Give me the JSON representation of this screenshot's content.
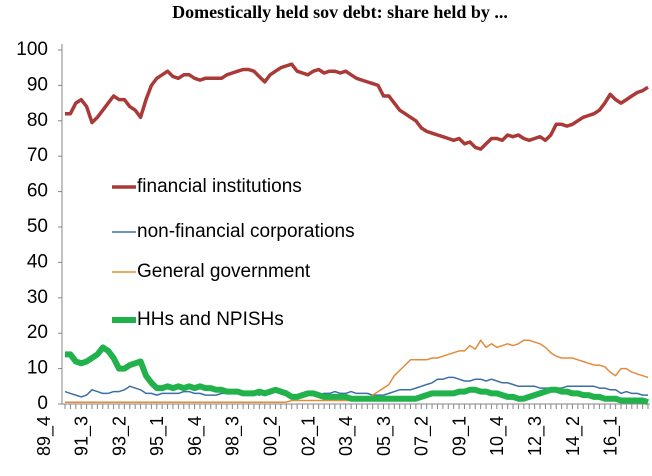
{
  "chart_data": {
    "type": "line",
    "title": "Domestically held sov debt: share held by ...",
    "categories": [
      "89_4",
      null,
      null,
      null,
      null,
      null,
      null,
      "91_3",
      null,
      null,
      null,
      null,
      null,
      null,
      "93_2",
      null,
      null,
      null,
      null,
      null,
      null,
      "95_1",
      null,
      null,
      null,
      null,
      null,
      null,
      "96_4",
      null,
      null,
      null,
      null,
      null,
      null,
      "98_3",
      null,
      null,
      null,
      null,
      null,
      null,
      "00_2",
      null,
      null,
      null,
      null,
      null,
      null,
      "02_1",
      null,
      null,
      null,
      null,
      null,
      null,
      "03_4",
      null,
      null,
      null,
      null,
      null,
      null,
      "05_3",
      null,
      null,
      null,
      null,
      null,
      null,
      "07_2",
      null,
      null,
      null,
      null,
      null,
      null,
      "09_1",
      null,
      null,
      null,
      null,
      null,
      null,
      "10_4",
      null,
      null,
      null,
      null,
      null,
      null,
      "12_3",
      null,
      null,
      null,
      null,
      null,
      null,
      "14_2",
      null,
      null,
      null,
      null,
      null,
      null,
      "16_1",
      null,
      null,
      null
    ],
    "series": [
      {
        "name": "financial institutions",
        "color": "#a93a37",
        "width": 3.5,
        "values": [
          82,
          82,
          85,
          86,
          84,
          79.5,
          81,
          83,
          85,
          87,
          86,
          86,
          84,
          83,
          81,
          86,
          90,
          92,
          93,
          94,
          92.5,
          92,
          93,
          93,
          92,
          91.5,
          92,
          92,
          92,
          92,
          93,
          93.5,
          94,
          94.5,
          94.5,
          94,
          92.5,
          91,
          93,
          94,
          95,
          95.5,
          96,
          94,
          93.5,
          93,
          94,
          94.5,
          93.5,
          94,
          94,
          93.5,
          94,
          93,
          92,
          91.5,
          91,
          90.5,
          90,
          87,
          87,
          85,
          83,
          82,
          81,
          80,
          78,
          77,
          76.5,
          76,
          75.5,
          75,
          74.5,
          75,
          73.5,
          74,
          72.5,
          72,
          73.5,
          75,
          75,
          74.5,
          76,
          75.5,
          76,
          75,
          74.5,
          75,
          75.5,
          74.5,
          76,
          79,
          79,
          78.5,
          79,
          80,
          81,
          81.5,
          82,
          83,
          85,
          87.5,
          86,
          85,
          86,
          87,
          88,
          88.5,
          89.5
        ]
      },
      {
        "name": "non-financial corporations",
        "color": "#3b6ea5",
        "width": 1.5,
        "values": [
          3.5,
          3,
          2.5,
          2,
          2.5,
          4,
          3.5,
          3,
          3,
          3.5,
          3.5,
          4,
          5,
          4.5,
          4,
          3,
          3,
          2.5,
          3,
          3,
          3,
          3,
          3.5,
          3.5,
          3,
          3,
          2.5,
          2.5,
          2.5,
          3,
          3,
          3,
          3.5,
          3,
          3,
          3,
          2.5,
          3,
          3,
          3.5,
          3,
          3,
          2.5,
          2.5,
          2.5,
          2.5,
          3,
          2.5,
          3,
          3,
          3.5,
          3,
          3,
          3.5,
          3,
          3,
          3,
          2.5,
          2.5,
          2.5,
          3,
          3.5,
          4,
          4,
          4,
          4.5,
          5,
          5.5,
          6,
          7,
          7,
          7.5,
          7.5,
          7,
          6.5,
          6.5,
          7,
          7,
          6.5,
          7,
          6.5,
          6,
          6,
          5.5,
          5,
          5,
          5,
          5,
          4.5,
          4.5,
          4.5,
          4.5,
          4.5,
          5,
          5,
          5,
          5,
          5,
          5,
          4.5,
          4.5,
          4,
          4,
          3,
          3.5,
          3,
          3,
          2.5,
          2.5
        ]
      },
      {
        "name": "General government",
        "color": "#e38b3a",
        "width": 1.5,
        "values": [
          0.5,
          0.5,
          0.5,
          0.5,
          0.5,
          0.5,
          0.5,
          0.5,
          0.5,
          0.5,
          0.5,
          0.5,
          0.5,
          0.5,
          0.5,
          0.5,
          0.5,
          0.5,
          0.5,
          0.5,
          0.5,
          0.5,
          0.5,
          0.5,
          0.5,
          0.5,
          0.5,
          0.5,
          0.5,
          0.5,
          0.5,
          0.5,
          0.5,
          0.5,
          0.5,
          0.5,
          0.5,
          0.5,
          0.5,
          0.5,
          0.5,
          0.5,
          1,
          1,
          1,
          1,
          1,
          1,
          1,
          1,
          1,
          1,
          1,
          1,
          1,
          1,
          1.5,
          2.5,
          3.5,
          4.5,
          5.5,
          8,
          9.5,
          11,
          12.5,
          12.5,
          12.5,
          12.5,
          13,
          13,
          13.5,
          14,
          14.5,
          15,
          15,
          16.5,
          15.5,
          18,
          16,
          17,
          16,
          16.5,
          17,
          16.5,
          17,
          18,
          18,
          17.5,
          17,
          16,
          14.5,
          13.5,
          13,
          13,
          13,
          12.5,
          12,
          11.5,
          11,
          11,
          10.5,
          9,
          8,
          10,
          10,
          9,
          8.5,
          8,
          7.5
        ]
      },
      {
        "name": "HHs and NPISHs",
        "color": "#22b24c",
        "width": 6,
        "values": [
          14,
          14,
          12,
          11.5,
          12,
          13,
          14,
          16,
          15,
          13,
          10,
          10,
          11,
          11.5,
          12,
          8,
          6,
          4.5,
          4.5,
          5,
          4.5,
          5,
          4.5,
          5,
          4.5,
          5,
          4.5,
          4.5,
          4,
          4,
          3.5,
          3.5,
          3.5,
          3,
          3,
          3,
          3.5,
          3,
          3.5,
          4,
          3.5,
          3,
          2,
          2,
          2.5,
          3,
          3,
          2.5,
          2,
          2,
          2,
          2,
          2,
          1.5,
          1.5,
          1.5,
          1.5,
          1.5,
          1.5,
          1.5,
          1.5,
          1.5,
          1.5,
          1.5,
          1.5,
          1.5,
          2,
          2.5,
          3,
          3,
          3,
          3,
          3,
          3.5,
          3.5,
          4,
          4,
          3.5,
          3.5,
          3,
          3,
          2.5,
          2,
          2,
          1.5,
          1.5,
          2,
          2.5,
          3,
          3.5,
          4,
          4,
          3.5,
          3.5,
          3,
          3,
          2.5,
          2.5,
          2,
          2,
          1.5,
          1.5,
          1.5,
          1,
          1,
          1,
          1,
          1,
          0.5
        ]
      }
    ],
    "ylim": [
      0,
      100
    ],
    "yticks": [
      0,
      10,
      20,
      30,
      40,
      50,
      60,
      70,
      80,
      90,
      100
    ],
    "grid": false
  }
}
